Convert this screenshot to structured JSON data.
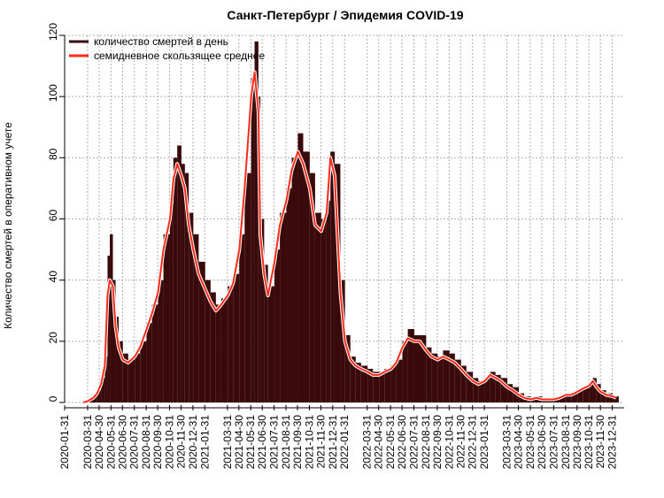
{
  "chart_data": {
    "type": "bar+line",
    "title": "Санкт-Петербург / Эпидемия COVID-19",
    "ylabel": "Количество смертей в оперативном учете",
    "xlabel": "",
    "ylim": [
      0,
      120
    ],
    "yticks": [
      0,
      20,
      40,
      60,
      80,
      100,
      120
    ],
    "grid": true,
    "legend_position": "top-left",
    "xlim": [
      "2020-01-31",
      "2024-01-31"
    ],
    "xticks": [
      "2020-01-31",
      "2020-03-31",
      "2020-04-30",
      "2020-05-31",
      "2020-06-30",
      "2020-07-31",
      "2020-08-31",
      "2020-09-30",
      "2020-10-31",
      "2020-11-30",
      "2020-12-31",
      "2021-01-31",
      "2021-03-31",
      "2021-04-30",
      "2021-05-31",
      "2021-06-30",
      "2021-07-31",
      "2021-08-31",
      "2021-09-30",
      "2021-10-31",
      "2021-11-30",
      "2021-12-31",
      "2022-01-31",
      "2022-03-31",
      "2022-04-30",
      "2022-05-31",
      "2022-06-30",
      "2022-07-31",
      "2022-08-31",
      "2022-09-30",
      "2022-10-31",
      "2022-11-30",
      "2022-12-31",
      "2023-01-31",
      "2023-03-31",
      "2023-04-30",
      "2023-05-31",
      "2023-06-30",
      "2023-07-31",
      "2023-08-31",
      "2023-09-30",
      "2023-10-31",
      "2023-11-30",
      "2023-12-31"
    ],
    "series": [
      {
        "name": "количество смертей в день",
        "kind": "bars",
        "color": "#3a0a0a",
        "x": [
          "2020-03-20",
          "2020-04-01",
          "2020-04-15",
          "2020-04-25",
          "2020-05-05",
          "2020-05-15",
          "2020-05-22",
          "2020-05-28",
          "2020-06-05",
          "2020-06-12",
          "2020-06-20",
          "2020-07-01",
          "2020-07-15",
          "2020-08-01",
          "2020-08-15",
          "2020-09-01",
          "2020-09-15",
          "2020-10-01",
          "2020-10-15",
          "2020-11-01",
          "2020-11-10",
          "2020-11-20",
          "2020-12-01",
          "2020-12-10",
          "2020-12-20",
          "2021-01-01",
          "2021-01-15",
          "2021-02-01",
          "2021-02-15",
          "2021-03-01",
          "2021-03-15",
          "2021-04-01",
          "2021-04-15",
          "2021-05-01",
          "2021-05-15",
          "2021-06-01",
          "2021-06-10",
          "2021-06-20",
          "2021-06-25",
          "2021-07-05",
          "2021-07-15",
          "2021-08-01",
          "2021-08-15",
          "2021-09-01",
          "2021-09-15",
          "2021-10-01",
          "2021-10-15",
          "2021-11-01",
          "2021-11-15",
          "2021-12-01",
          "2021-12-15",
          "2021-12-25",
          "2022-01-05",
          "2022-01-20",
          "2022-02-01",
          "2022-02-15",
          "2022-03-01",
          "2022-03-15",
          "2022-04-01",
          "2022-04-15",
          "2022-05-01",
          "2022-05-15",
          "2022-06-01",
          "2022-06-15",
          "2022-07-01",
          "2022-07-15",
          "2022-08-01",
          "2022-08-15",
          "2022-09-01",
          "2022-09-15",
          "2022-10-01",
          "2022-10-15",
          "2022-11-01",
          "2022-11-15",
          "2022-12-01",
          "2022-12-15",
          "2023-01-01",
          "2023-01-15",
          "2023-02-01",
          "2023-02-15",
          "2023-03-01",
          "2023-03-15",
          "2023-04-01",
          "2023-04-15",
          "2023-05-01",
          "2023-05-15",
          "2023-06-01",
          "2023-06-15",
          "2023-07-01",
          "2023-07-15",
          "2023-08-01",
          "2023-08-15",
          "2023-09-01",
          "2023-09-15",
          "2023-10-01",
          "2023-10-15",
          "2023-11-01",
          "2023-11-10",
          "2023-11-20",
          "2023-12-01",
          "2023-12-15",
          "2024-01-01",
          "2024-01-10"
        ],
        "values": [
          0,
          1,
          2,
          4,
          8,
          15,
          48,
          55,
          40,
          28,
          20,
          16,
          14,
          16,
          20,
          26,
          32,
          40,
          55,
          65,
          80,
          84,
          78,
          75,
          62,
          55,
          46,
          40,
          36,
          32,
          34,
          38,
          42,
          55,
          75,
          106,
          118,
          100,
          60,
          45,
          38,
          50,
          62,
          70,
          80,
          88,
          82,
          75,
          62,
          60,
          66,
          82,
          78,
          40,
          22,
          15,
          13,
          12,
          11,
          10,
          10,
          11,
          12,
          14,
          20,
          24,
          22,
          22,
          18,
          16,
          15,
          17,
          16,
          14,
          12,
          10,
          8,
          7,
          8,
          10,
          9,
          8,
          6,
          5,
          3,
          2,
          1,
          2,
          1,
          1,
          1,
          2,
          3,
          3,
          4,
          5,
          6,
          8,
          6,
          4,
          3,
          2,
          2
        ]
      },
      {
        "name": "семидневное скользящее среднее",
        "kind": "line",
        "color": "#ff2a1a",
        "x": [
          "2020-03-20",
          "2020-04-01",
          "2020-04-15",
          "2020-04-25",
          "2020-05-05",
          "2020-05-15",
          "2020-05-22",
          "2020-05-28",
          "2020-06-05",
          "2020-06-12",
          "2020-06-20",
          "2020-07-01",
          "2020-07-15",
          "2020-08-01",
          "2020-08-15",
          "2020-09-01",
          "2020-09-15",
          "2020-10-01",
          "2020-10-15",
          "2020-11-01",
          "2020-11-10",
          "2020-11-20",
          "2020-12-01",
          "2020-12-10",
          "2020-12-20",
          "2021-01-01",
          "2021-01-15",
          "2021-02-01",
          "2021-02-15",
          "2021-03-01",
          "2021-03-15",
          "2021-04-01",
          "2021-04-15",
          "2021-05-01",
          "2021-05-15",
          "2021-06-01",
          "2021-06-10",
          "2021-06-20",
          "2021-06-25",
          "2021-07-05",
          "2021-07-15",
          "2021-08-01",
          "2021-08-15",
          "2021-09-01",
          "2021-09-15",
          "2021-10-01",
          "2021-10-15",
          "2021-11-01",
          "2021-11-15",
          "2021-12-01",
          "2021-12-15",
          "2021-12-25",
          "2022-01-05",
          "2022-01-20",
          "2022-02-01",
          "2022-02-15",
          "2022-03-01",
          "2022-03-15",
          "2022-04-01",
          "2022-04-15",
          "2022-05-01",
          "2022-05-15",
          "2022-06-01",
          "2022-06-15",
          "2022-07-01",
          "2022-07-15",
          "2022-08-01",
          "2022-08-15",
          "2022-09-01",
          "2022-09-15",
          "2022-10-01",
          "2022-10-15",
          "2022-11-01",
          "2022-11-15",
          "2022-12-01",
          "2022-12-15",
          "2023-01-01",
          "2023-01-15",
          "2023-02-01",
          "2023-02-15",
          "2023-03-01",
          "2023-03-15",
          "2023-04-01",
          "2023-04-15",
          "2023-05-01",
          "2023-05-15",
          "2023-06-01",
          "2023-06-15",
          "2023-07-01",
          "2023-07-15",
          "2023-08-01",
          "2023-08-15",
          "2023-09-01",
          "2023-09-15",
          "2023-10-01",
          "2023-10-15",
          "2023-11-01",
          "2023-11-10",
          "2023-11-20",
          "2023-12-01",
          "2023-12-15",
          "2024-01-01",
          "2024-01-10"
        ],
        "values": [
          0,
          0.5,
          1.5,
          3,
          6,
          12,
          35,
          40,
          38,
          25,
          18,
          14,
          13,
          15,
          18,
          24,
          29,
          36,
          50,
          60,
          73,
          78,
          74,
          70,
          58,
          50,
          42,
          37,
          33,
          30,
          32,
          35,
          39,
          50,
          70,
          100,
          108,
          95,
          55,
          42,
          35,
          46,
          58,
          66,
          76,
          82,
          78,
          70,
          58,
          56,
          62,
          80,
          74,
          36,
          20,
          14,
          12,
          11,
          10,
          9,
          9,
          10,
          11,
          13,
          18,
          21,
          20,
          20,
          17,
          15,
          14,
          15,
          14,
          13,
          11,
          9,
          7,
          6,
          7,
          9,
          8,
          7,
          5,
          4,
          2.5,
          1.5,
          1,
          1.5,
          1,
          1,
          1,
          1.5,
          2.5,
          2.5,
          3.5,
          4.5,
          5.5,
          7,
          5,
          3.5,
          2.5,
          2,
          1.5
        ]
      }
    ]
  },
  "legend": {
    "items": [
      {
        "label": "количество смертей в день",
        "color": "#3a0a0a"
      },
      {
        "label": "семидневное скользящее среднее",
        "color": "#ff2a1a"
      }
    ]
  }
}
